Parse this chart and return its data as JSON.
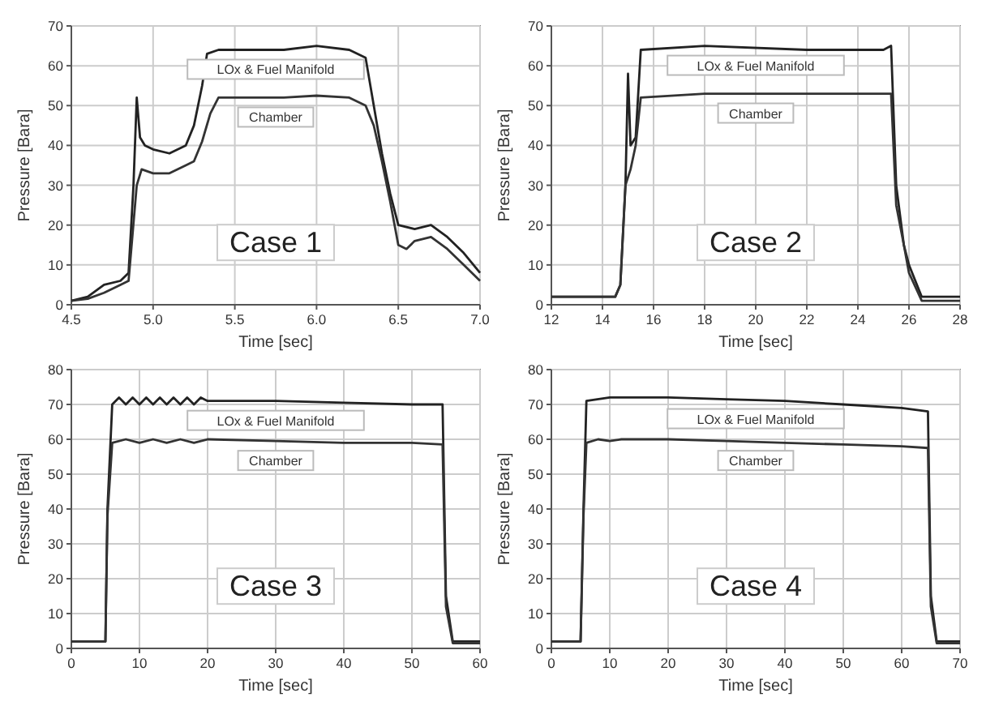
{
  "chart_data": [
    {
      "type": "line",
      "xlabel": "Time [sec]",
      "ylabel": "Pressure [Bara]",
      "annotations": [
        "Case 1"
      ],
      "xlim": [
        4.5,
        7.0
      ],
      "ylim": [
        0,
        70
      ],
      "xticks": [
        4.5,
        {
          "value": 5,
          "label": "5.0"
        },
        5.5,
        {
          "value": 6,
          "label": "6.0"
        },
        6.5,
        {
          "value": 7,
          "label": "7.0"
        }
      ],
      "yticks": [
        0,
        10,
        20,
        30,
        40,
        50,
        60,
        70
      ],
      "grid": true,
      "series": [
        {
          "name": "LOx & Fuel Manifold",
          "color": "#222222",
          "x": [
            4.5,
            4.6,
            4.7,
            4.8,
            4.85,
            4.88,
            4.9,
            4.92,
            4.95,
            5.0,
            5.1,
            5.2,
            5.25,
            5.3,
            5.33,
            5.4,
            5.6,
            5.8,
            6.0,
            6.2,
            6.3,
            6.35,
            6.4,
            6.45,
            6.5,
            6.6,
            6.7,
            6.8,
            6.9,
            7.0
          ],
          "values": [
            1,
            2,
            5,
            6,
            8,
            30,
            52,
            42,
            40,
            39,
            38,
            40,
            45,
            55,
            63,
            64,
            64,
            64,
            65,
            64,
            62,
            50,
            38,
            28,
            20,
            19,
            20,
            17,
            13,
            8
          ]
        },
        {
          "name": "Chamber",
          "color": "#333333",
          "x": [
            4.5,
            4.6,
            4.7,
            4.8,
            4.85,
            4.9,
            4.93,
            5.0,
            5.1,
            5.2,
            5.25,
            5.3,
            5.35,
            5.4,
            5.6,
            5.8,
            6.0,
            6.2,
            6.3,
            6.35,
            6.4,
            6.45,
            6.5,
            6.55,
            6.6,
            6.7,
            6.8,
            6.9,
            7.0
          ],
          "values": [
            1,
            1.5,
            3,
            5,
            6,
            30,
            34,
            33,
            33,
            35,
            36,
            41,
            48,
            52,
            52,
            52,
            52.5,
            52,
            50,
            45,
            36,
            26,
            15,
            14,
            16,
            17,
            14,
            10,
            6
          ]
        }
      ]
    },
    {
      "type": "line",
      "xlabel": "Time [sec]",
      "ylabel": "Pressure [Bara]",
      "annotations": [
        "Case 2"
      ],
      "xlim": [
        12,
        28
      ],
      "ylim": [
        0,
        70
      ],
      "xticks": [
        12,
        14,
        16,
        18,
        20,
        22,
        24,
        26,
        28
      ],
      "yticks": [
        0,
        10,
        20,
        30,
        40,
        50,
        60,
        70
      ],
      "grid": true,
      "series": [
        {
          "name": "LOx & Fuel Manifold",
          "color": "#222222",
          "x": [
            12,
            14.5,
            14.7,
            14.9,
            15.0,
            15.1,
            15.3,
            15.5,
            18,
            22,
            25,
            25.3,
            25.5,
            25.8,
            26,
            26.5,
            28
          ],
          "values": [
            2,
            2,
            5,
            30,
            58,
            40,
            42,
            64,
            65,
            64,
            64,
            65,
            30,
            15,
            10,
            2,
            2
          ]
        },
        {
          "name": "Chamber",
          "color": "#333333",
          "x": [
            12,
            14.5,
            14.7,
            14.9,
            15.1,
            15.3,
            15.5,
            18,
            22,
            25,
            25.3,
            25.5,
            25.8,
            26,
            26.5,
            28
          ],
          "values": [
            2,
            2,
            5,
            30,
            34,
            40,
            52,
            53,
            53,
            53,
            53,
            25,
            15,
            8,
            1,
            1
          ]
        }
      ]
    },
    {
      "type": "line",
      "xlabel": "Time [sec]",
      "ylabel": "Pressure [Bara]",
      "annotations": [
        "Case 3"
      ],
      "xlim": [
        0,
        60
      ],
      "ylim": [
        0,
        80
      ],
      "xticks": [
        0,
        10,
        20,
        30,
        40,
        50,
        60
      ],
      "yticks": [
        0,
        10,
        20,
        30,
        40,
        50,
        60,
        70,
        80
      ],
      "grid": true,
      "series": [
        {
          "name": "LOx & Fuel Manifold",
          "color": "#222222",
          "x": [
            0,
            5,
            5.3,
            6,
            7,
            8,
            9,
            10,
            11,
            12,
            13,
            14,
            15,
            16,
            17,
            18,
            19,
            20,
            30,
            40,
            50,
            54.5,
            55,
            56,
            60
          ],
          "values": [
            2,
            2,
            40,
            70,
            72,
            70,
            72,
            70,
            72,
            70,
            72,
            70,
            72,
            70,
            72,
            70,
            72,
            71,
            71,
            70.5,
            70,
            70,
            15,
            2,
            2
          ]
        },
        {
          "name": "Chamber",
          "color": "#333333",
          "x": [
            0,
            5,
            5.3,
            6,
            8,
            10,
            12,
            14,
            16,
            18,
            20,
            30,
            40,
            50,
            54.5,
            55,
            56,
            60
          ],
          "values": [
            2,
            2,
            38,
            59,
            60,
            59,
            60,
            59,
            60,
            59,
            60,
            59.5,
            59,
            59,
            58.5,
            12,
            1.5,
            1.5
          ]
        }
      ]
    },
    {
      "type": "line",
      "xlabel": "Time [sec]",
      "ylabel": "Pressure [Bara]",
      "annotations": [
        "Case 4"
      ],
      "xlim": [
        0,
        70
      ],
      "ylim": [
        0,
        80
      ],
      "xticks": [
        0,
        10,
        20,
        30,
        40,
        50,
        60,
        70
      ],
      "yticks": [
        0,
        10,
        20,
        30,
        40,
        50,
        60,
        70,
        80
      ],
      "grid": true,
      "series": [
        {
          "name": "LOx & Fuel Manifold",
          "color": "#222222",
          "x": [
            0,
            5,
            5.5,
            6,
            10,
            20,
            30,
            40,
            50,
            60,
            64.5,
            65,
            66,
            70
          ],
          "values": [
            2,
            2,
            40,
            71,
            72,
            72,
            71.5,
            71,
            70,
            69,
            68,
            15,
            2,
            2
          ]
        },
        {
          "name": "Chamber",
          "color": "#333333",
          "x": [
            0,
            5,
            5.5,
            6,
            8,
            10,
            12,
            20,
            30,
            40,
            50,
            60,
            64.5,
            65,
            66,
            70
          ],
          "values": [
            2,
            2,
            38,
            59,
            60,
            59.5,
            60,
            60,
            59.5,
            59,
            58.5,
            58,
            57.5,
            12,
            1.5,
            1.5
          ]
        }
      ]
    }
  ]
}
